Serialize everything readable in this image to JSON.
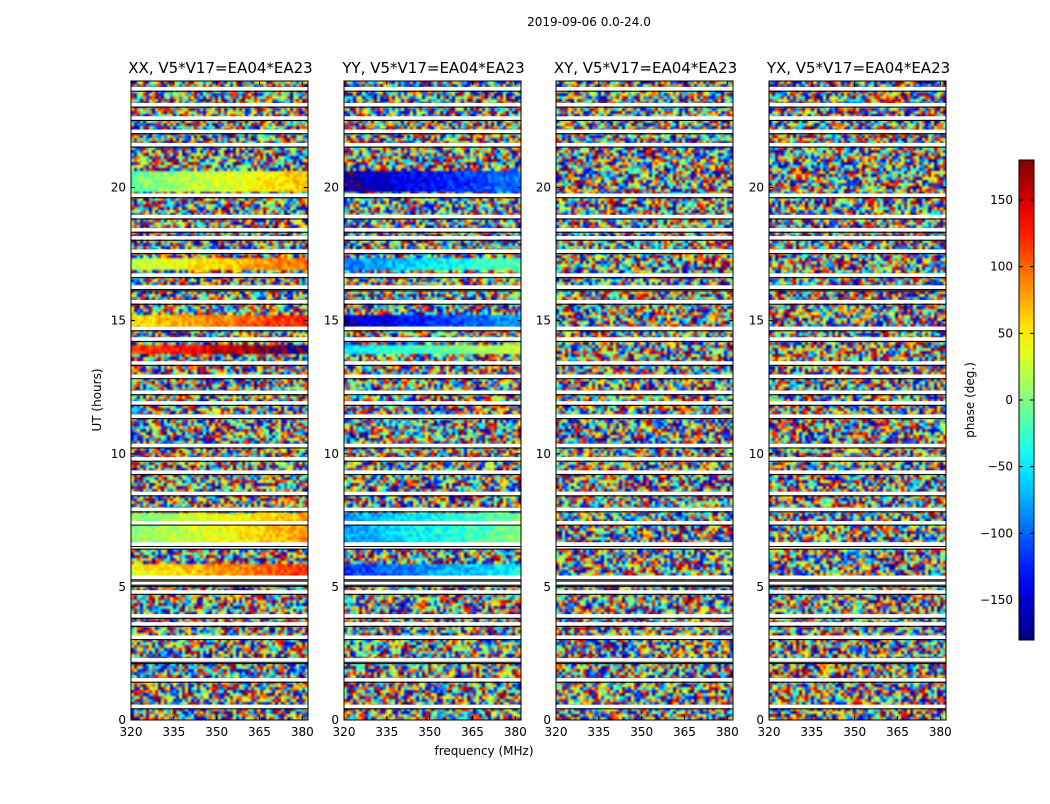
{
  "figure": {
    "suptitle": "2019-09-06 0.0-24.0"
  },
  "chart_data": {
    "type": "heatmap",
    "xlabel": "frequency (MHz)",
    "ylabel": "UT (hours)",
    "xlim": [
      320,
      382
    ],
    "ylim": [
      0,
      24
    ],
    "xticks": [
      320,
      335,
      350,
      365,
      380
    ],
    "yticks": [
      0,
      5,
      10,
      15,
      20
    ],
    "colormap": "jet",
    "colorbar": {
      "label": "phase (deg.)",
      "range": [
        -180,
        180
      ],
      "ticks": [
        -150,
        -100,
        -50,
        0,
        50,
        100,
        150
      ],
      "tick_labels": [
        "−150",
        "−100",
        "−50",
        "0",
        "50",
        "100",
        "150"
      ]
    },
    "panels": [
      {
        "title": "XX, V5*V17=EA04*EA23",
        "coherent_bands": [
          [
            5.2,
            5.9,
            60
          ],
          [
            6.7,
            7.8,
            20
          ],
          [
            13.8,
            14.1,
            130
          ],
          [
            14.8,
            15.2,
            70
          ],
          [
            16.9,
            17.3,
            40
          ],
          [
            19.8,
            20.6,
            10
          ]
        ]
      },
      {
        "title": "YY, V5*V17=EA04*EA23",
        "coherent_bands": [
          [
            5.2,
            5.9,
            -100
          ],
          [
            6.7,
            7.8,
            -60
          ],
          [
            13.8,
            14.1,
            -30
          ],
          [
            14.8,
            15.2,
            -140
          ],
          [
            16.9,
            17.3,
            -70
          ],
          [
            19.8,
            20.6,
            -150
          ]
        ]
      },
      {
        "title": "XY, V5*V17=EA04*EA23",
        "coherent_bands": []
      },
      {
        "title": "YX, V5*V17=EA04*EA23",
        "coherent_bands": []
      }
    ],
    "flagged_hours": [
      0.5,
      1.5,
      2.2,
      2.25,
      3.1,
      3.6,
      3.9,
      4.8,
      5.1,
      5.15,
      5.3,
      5.35,
      6.5,
      6.6,
      7.4,
      7.9,
      8.5,
      9.3,
      9.8,
      10.3,
      11.4,
      11.9,
      12.3,
      12.9,
      13.4,
      14.3,
      14.7,
      15.7,
      16.2,
      16.25,
      16.7,
      17.6,
      18.1,
      18.4,
      18.9,
      19.7,
      21.6,
      22.1,
      22.6,
      23.1,
      23.7
    ]
  }
}
